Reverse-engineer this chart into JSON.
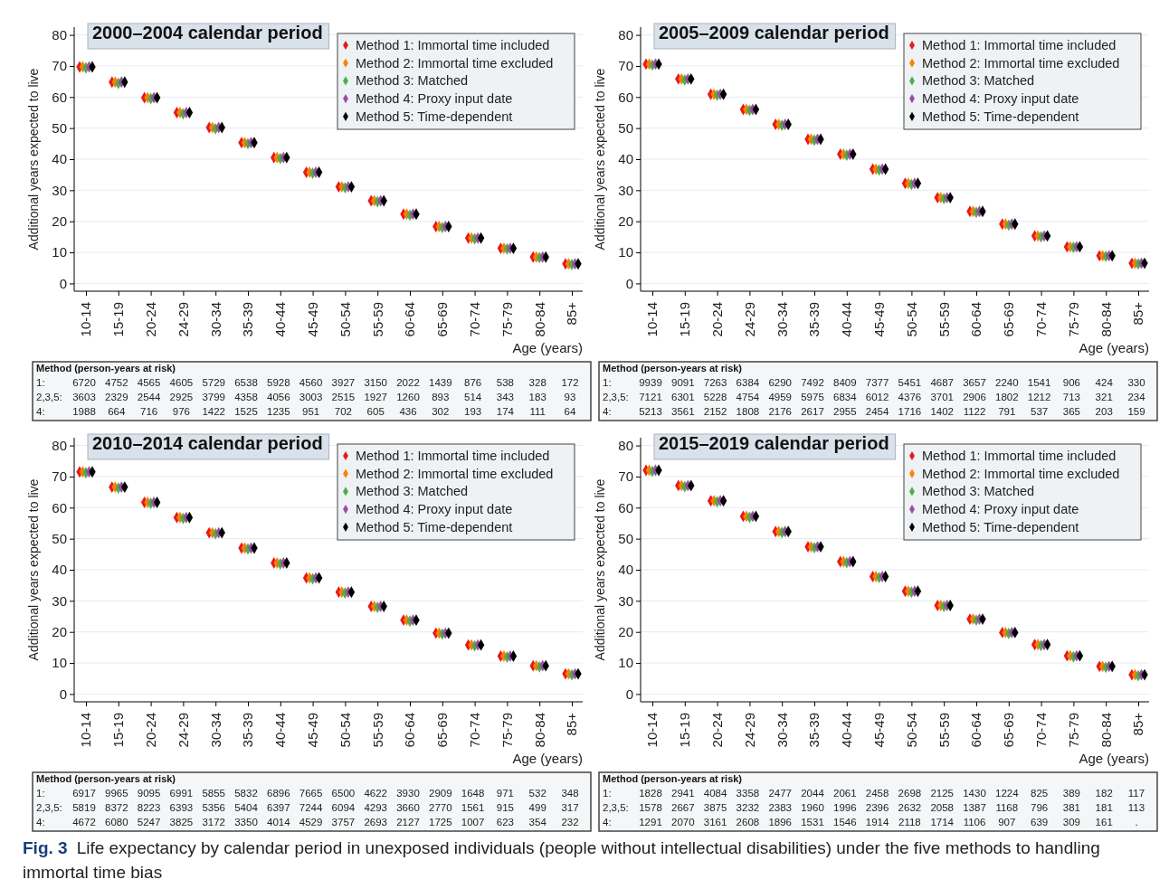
{
  "chart_data": [
    {
      "type": "scatter",
      "title": "2000–2004 calendar period",
      "xlabel": "Age (years)",
      "ylabel": "Additional years expected to live",
      "categories": [
        "10-14",
        "15-19",
        "20-24",
        "24-29",
        "30-34",
        "35-39",
        "40-44",
        "45-49",
        "50-54",
        "55-59",
        "60-64",
        "65-69",
        "70-74",
        "75-79",
        "80-84",
        "85+"
      ],
      "ylim": [
        -2.5,
        82.5
      ],
      "yticks": [
        0,
        10,
        20,
        30,
        40,
        50,
        60,
        70,
        80
      ],
      "grid": "y",
      "legend": "top right",
      "marker": "diamond",
      "series": [
        {
          "name": "Method 1: Immortal time included",
          "color": "#e41a1c",
          "values": [
            69.7,
            64.8,
            59.8,
            55.0,
            50.2,
            45.3,
            40.5,
            35.8,
            31.1,
            26.6,
            22.3,
            18.3,
            14.6,
            11.3,
            8.5,
            6.3
          ]
        },
        {
          "name": "Method 2: Immortal time excluded",
          "color": "#ff7f00",
          "values": [
            69.7,
            64.8,
            59.8,
            55.0,
            50.2,
            45.3,
            40.5,
            35.8,
            31.1,
            26.6,
            22.3,
            18.3,
            14.6,
            11.3,
            8.5,
            6.3
          ]
        },
        {
          "name": "Method 3: Matched",
          "color": "#4daf4a",
          "values": [
            69.4,
            64.4,
            59.5,
            54.6,
            49.8,
            45.0,
            40.2,
            35.5,
            30.8,
            26.3,
            22.0,
            18.0,
            14.4,
            11.1,
            8.3,
            6.1
          ]
        },
        {
          "name": "Method 4: Proxy input date",
          "color": "#984ea3",
          "values": [
            69.7,
            64.8,
            59.8,
            55.0,
            50.2,
            45.3,
            40.5,
            35.8,
            31.1,
            26.6,
            22.3,
            18.3,
            14.6,
            11.3,
            8.5,
            6.3
          ]
        },
        {
          "name": "Method 5: Time-dependent",
          "color": "#000000",
          "values": [
            69.7,
            64.8,
            59.8,
            55.0,
            50.2,
            45.3,
            40.5,
            35.8,
            31.1,
            26.6,
            22.3,
            18.3,
            14.6,
            11.3,
            8.5,
            6.3
          ]
        }
      ],
      "annotations": [
        "Method (person-years at risk)",
        "1: 6720 4752 4565 4605 5729 6538 5928 4560 3927 3150 2022 1439 876 538 328 172",
        "2,3,5: 3603 2329 2544 2925 3799 4358 4056 3003 2515 1927 1260 893 514 343 183 93",
        "4: 1988 664 716 976 1422 1525 1235 951 702 605 436 302 193 174 111 64"
      ]
    },
    {
      "type": "scatter",
      "title": "2005–2009 calendar period",
      "xlabel": "Age (years)",
      "ylabel": "Additional years expected to live",
      "categories": [
        "10-14",
        "15-19",
        "20-24",
        "24-29",
        "30-34",
        "35-39",
        "40-44",
        "45-49",
        "50-54",
        "55-59",
        "60-64",
        "65-69",
        "70-74",
        "75-79",
        "80-84",
        "85+"
      ],
      "ylim": [
        -2.5,
        82.5
      ],
      "yticks": [
        0,
        10,
        20,
        30,
        40,
        50,
        60,
        70,
        80
      ],
      "grid": "y",
      "legend": "top right",
      "marker": "diamond",
      "series": [
        {
          "name": "Method 1: Immortal time included",
          "color": "#e41a1c",
          "values": [
            70.6,
            65.8,
            60.9,
            56.0,
            51.2,
            46.4,
            41.6,
            36.8,
            32.2,
            27.6,
            23.2,
            19.1,
            15.3,
            11.8,
            8.9,
            6.5
          ]
        },
        {
          "name": "Method 2: Immortal time excluded",
          "color": "#ff7f00",
          "values": [
            70.6,
            65.8,
            60.9,
            56.0,
            51.2,
            46.4,
            41.6,
            36.8,
            32.2,
            27.6,
            23.2,
            19.1,
            15.3,
            11.8,
            8.9,
            6.5
          ]
        },
        {
          "name": "Method 3: Matched",
          "color": "#4daf4a",
          "values": [
            70.3,
            65.5,
            60.6,
            55.7,
            50.9,
            46.1,
            41.3,
            36.5,
            31.9,
            27.3,
            22.9,
            18.8,
            15.0,
            11.6,
            8.7,
            6.3
          ]
        },
        {
          "name": "Method 4: Proxy input date",
          "color": "#984ea3",
          "values": [
            70.6,
            65.8,
            60.9,
            56.0,
            51.2,
            46.4,
            41.6,
            36.8,
            32.2,
            27.6,
            23.2,
            19.1,
            15.3,
            11.8,
            8.9,
            6.5
          ]
        },
        {
          "name": "Method 5: Time-dependent",
          "color": "#000000",
          "values": [
            70.6,
            65.8,
            60.9,
            56.0,
            51.2,
            46.4,
            41.6,
            36.8,
            32.2,
            27.6,
            23.2,
            19.1,
            15.3,
            11.8,
            8.9,
            6.5
          ]
        }
      ],
      "annotations": [
        "Method (person-years at risk)",
        "1: 9939 9091 7263 6384 6290 7492 8409 7377 5451 4687 3657 2240 1541 906 424 330",
        "2,3,5: 7121 6301 5228 4754 4959 5975 6834 6012 4376 3701 2906 1802 1212 713 321 234",
        "4: 5213 3561 2152 1808 2176 2617 2955 2454 1716 1402 1122 791 537 365 203 159"
      ]
    },
    {
      "type": "scatter",
      "title": "2010–2014 calendar period",
      "xlabel": "Age (years)",
      "ylabel": "Additional years expected to live",
      "categories": [
        "10-14",
        "15-19",
        "20-24",
        "24-29",
        "30-34",
        "35-39",
        "40-44",
        "45-49",
        "50-54",
        "55-59",
        "60-64",
        "65-69",
        "70-74",
        "75-79",
        "80-84",
        "85+"
      ],
      "ylim": [
        -2.5,
        82.5
      ],
      "yticks": [
        0,
        10,
        20,
        30,
        40,
        50,
        60,
        70,
        80
      ],
      "grid": "y",
      "legend": "top right",
      "marker": "diamond",
      "series": [
        {
          "name": "Method 1: Immortal time included",
          "color": "#e41a1c",
          "values": [
            71.5,
            66.6,
            61.7,
            56.8,
            51.9,
            47.0,
            42.2,
            37.4,
            32.8,
            28.2,
            23.8,
            19.6,
            15.8,
            12.2,
            9.1,
            6.5
          ]
        },
        {
          "name": "Method 2: Immortal time excluded",
          "color": "#ff7f00",
          "values": [
            71.5,
            66.6,
            61.7,
            56.8,
            51.9,
            47.0,
            42.2,
            37.4,
            32.8,
            28.2,
            23.8,
            19.6,
            15.8,
            12.2,
            9.1,
            6.5
          ]
        },
        {
          "name": "Method 3: Matched",
          "color": "#4daf4a",
          "values": [
            71.2,
            66.3,
            61.4,
            56.5,
            51.6,
            46.7,
            41.9,
            37.1,
            32.5,
            27.9,
            23.5,
            19.3,
            15.5,
            11.9,
            8.8,
            6.2
          ]
        },
        {
          "name": "Method 4: Proxy input date",
          "color": "#984ea3",
          "values": [
            71.5,
            66.6,
            61.7,
            56.8,
            51.9,
            47.0,
            42.2,
            37.4,
            32.8,
            28.2,
            23.8,
            19.6,
            15.8,
            12.2,
            9.1,
            6.5
          ]
        },
        {
          "name": "Method 5: Time-dependent",
          "color": "#000000",
          "values": [
            71.5,
            66.6,
            61.7,
            56.8,
            51.9,
            47.0,
            42.2,
            37.4,
            32.8,
            28.2,
            23.8,
            19.6,
            15.8,
            12.2,
            9.1,
            6.5
          ]
        }
      ],
      "annotations": [
        "Method (person-years at risk)",
        "1: 6917 9965 9095 6991 5855 5832 6896 7665 6500 4622 3930 2909 1648 971 532 348",
        "2,3,5: 5819 8372 8223 6393 5356 5404 6397 7244 6094 4293 3660 2770 1561 915 499 317",
        "4: 4672 6080 5247 3825 3172 3350 4014 4529 3757 2693 2127 1725 1007 623 354 232"
      ]
    },
    {
      "type": "scatter",
      "title": "2015–2019 calendar period",
      "xlabel": "Age (years)",
      "ylabel": "Additional years expected to live",
      "categories": [
        "10-14",
        "15-19",
        "20-24",
        "24-29",
        "30-34",
        "35-39",
        "40-44",
        "45-49",
        "50-54",
        "55-59",
        "60-64",
        "65-69",
        "70-74",
        "75-79",
        "80-84",
        "85+"
      ],
      "ylim": [
        -2.5,
        82.5
      ],
      "yticks": [
        0,
        10,
        20,
        30,
        40,
        50,
        60,
        70,
        80
      ],
      "grid": "y",
      "legend": "top right",
      "marker": "diamond",
      "series": [
        {
          "name": "Method 1: Immortal time included",
          "color": "#e41a1c",
          "values": [
            72.0,
            67.1,
            62.2,
            57.2,
            52.3,
            47.4,
            42.6,
            37.8,
            33.1,
            28.5,
            24.1,
            19.8,
            15.9,
            12.3,
            8.9,
            6.2
          ]
        },
        {
          "name": "Method 2: Immortal time excluded",
          "color": "#ff7f00",
          "values": [
            72.0,
            67.1,
            62.2,
            57.2,
            52.3,
            47.4,
            42.6,
            37.8,
            33.1,
            28.5,
            24.1,
            19.8,
            15.9,
            12.3,
            8.9,
            6.2
          ]
        },
        {
          "name": "Method 3: Matched",
          "color": "#4daf4a",
          "values": [
            71.7,
            66.8,
            61.9,
            56.9,
            52.0,
            47.1,
            42.3,
            37.5,
            32.8,
            28.2,
            23.8,
            19.5,
            15.6,
            12.0,
            8.6,
            5.9
          ]
        },
        {
          "name": "Method 4: Proxy input date",
          "color": "#984ea3",
          "values": [
            72.0,
            67.1,
            62.2,
            57.2,
            52.3,
            47.4,
            42.6,
            37.8,
            33.1,
            28.5,
            24.1,
            19.8,
            15.9,
            12.3,
            8.9,
            6.2
          ]
        },
        {
          "name": "Method 5: Time-dependent",
          "color": "#000000",
          "values": [
            72.0,
            67.1,
            62.2,
            57.2,
            52.3,
            47.4,
            42.6,
            37.8,
            33.1,
            28.5,
            24.1,
            19.8,
            15.9,
            12.3,
            8.9,
            6.2
          ]
        }
      ],
      "annotations": [
        "Method (person-years at risk)",
        "1: 1828 2941 4084 3358 2477 2044 2061 2458 2698 2125 1430 1224 825 389 182 117",
        "2,3,5: 1578 2667 3875 3232 2383 1960 1996 2396 2632 2058 1387 1168 796 381 181 113",
        "4: 1291 2070 3161 2608 1896 1531 1546 1914 2118 1714 1106 907 639 309 161 .",
        "Fig. 3",
        "Life expectancy by calendar period in unexposed individuals (people without intellectual disabilities) under the five methods to handling immortal time bias"
      ]
    }
  ]
}
